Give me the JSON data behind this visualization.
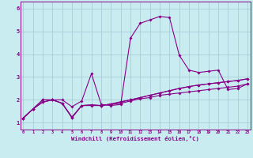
{
  "xlabel": "Windchill (Refroidissement éolien,°C)",
  "bg_color": "#c8ecf0",
  "line_color": "#880088",
  "grid_color": "#a0c8d4",
  "xmin": 0,
  "xmax": 23,
  "ymin": 0.7,
  "ymax": 6.3,
  "yticks": [
    1,
    2,
    3,
    4,
    5,
    6
  ],
  "xticks": [
    0,
    1,
    2,
    3,
    4,
    5,
    6,
    7,
    8,
    9,
    10,
    11,
    12,
    13,
    14,
    15,
    16,
    17,
    18,
    19,
    20,
    21,
    22,
    23
  ],
  "series": [
    [
      1.2,
      1.6,
      1.9,
      2.0,
      2.0,
      1.7,
      1.95,
      3.15,
      1.8,
      1.75,
      1.8,
      4.7,
      5.35,
      5.5,
      5.65,
      5.6,
      3.95,
      3.3,
      3.2,
      3.25,
      3.3,
      2.45,
      2.5,
      2.7
    ],
    [
      1.2,
      1.6,
      1.9,
      2.0,
      1.85,
      1.25,
      1.75,
      1.78,
      1.75,
      1.8,
      1.85,
      1.95,
      2.05,
      2.1,
      2.2,
      2.25,
      2.3,
      2.35,
      2.4,
      2.45,
      2.5,
      2.55,
      2.6,
      2.7
    ],
    [
      1.2,
      1.6,
      2.0,
      2.0,
      1.85,
      1.22,
      1.75,
      1.75,
      1.75,
      1.82,
      1.9,
      2.0,
      2.1,
      2.2,
      2.3,
      2.4,
      2.5,
      2.58,
      2.65,
      2.7,
      2.75,
      2.8,
      2.85,
      2.92
    ],
    [
      1.2,
      1.6,
      2.0,
      2.0,
      1.85,
      1.22,
      1.75,
      1.78,
      1.75,
      1.82,
      1.92,
      2.0,
      2.1,
      2.2,
      2.3,
      2.4,
      2.5,
      2.58,
      2.65,
      2.7,
      2.75,
      2.8,
      2.85,
      2.92
    ]
  ]
}
